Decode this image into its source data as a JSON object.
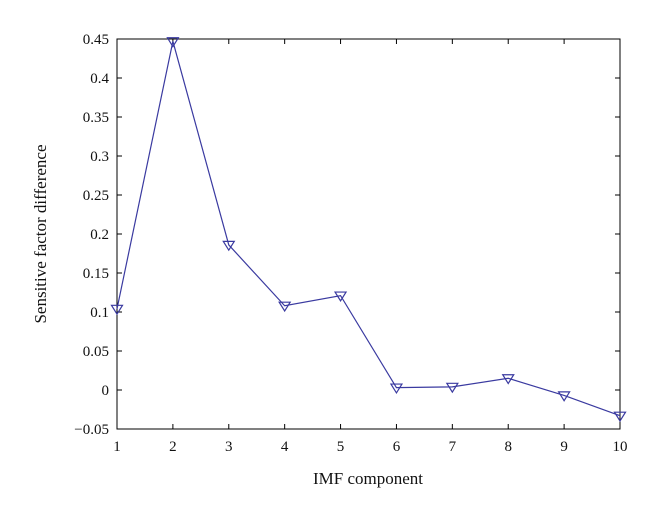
{
  "chart_data": {
    "type": "line",
    "title": "",
    "xlabel": "IMF component",
    "ylabel": "Sensitive factor difference",
    "xlim": [
      1,
      10
    ],
    "ylim": [
      -0.05,
      0.45
    ],
    "xticks": [
      1,
      2,
      3,
      4,
      5,
      6,
      7,
      8,
      9,
      10
    ],
    "yticks": [
      -0.05,
      0,
      0.05,
      0.1,
      0.15,
      0.2,
      0.25,
      0.3,
      0.35,
      0.4,
      0.45
    ],
    "ytick_labels": [
      "−0.05",
      "0",
      "0.05",
      "0.1",
      "0.15",
      "0.2",
      "0.25",
      "0.3",
      "0.35",
      "0.4",
      "0.45"
    ],
    "grid": false,
    "marker": "downward-triangle",
    "line_color": "#3a3aa0",
    "series": [
      {
        "x": [
          1,
          2,
          3,
          4,
          5,
          6,
          7,
          8,
          9,
          10
        ],
        "values": [
          0.104,
          0.447,
          0.186,
          0.108,
          0.121,
          0.003,
          0.004,
          0.015,
          -0.007,
          -0.033
        ]
      }
    ]
  }
}
